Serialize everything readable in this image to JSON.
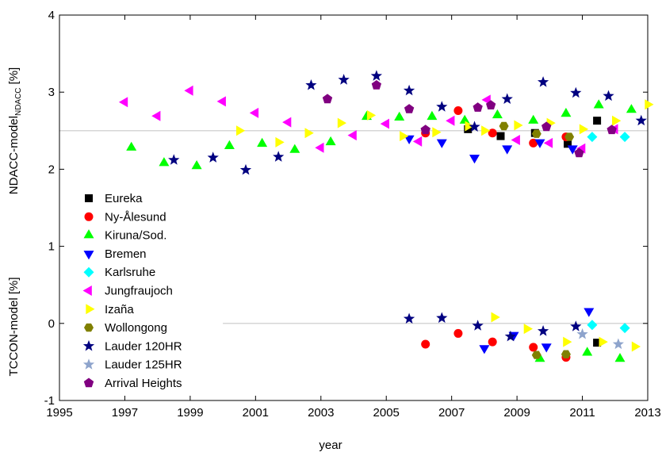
{
  "chart_data": {
    "type": "scatter",
    "ylabel_top": {
      "text": "NDACC-model",
      "sub": "NDACC",
      "unit": "[%]"
    },
    "ylabel_bottom": "TCCON-model [%]",
    "xlabel": "year",
    "xlim": [
      1995,
      2013
    ],
    "xticks": [
      1995,
      1997,
      1999,
      2001,
      2003,
      2005,
      2007,
      2009,
      2011,
      2013
    ],
    "ylim": [
      -1,
      4
    ],
    "yticks": [
      -1,
      0,
      1,
      2,
      3,
      4
    ],
    "legend": "lower left",
    "hlines": [
      {
        "y": 2.5,
        "xmin": 1995,
        "xmax": 2013,
        "color": "#c8c8c8"
      },
      {
        "y": 0,
        "xmin": 2000,
        "xmax": 2013,
        "color": "#c8c8c8"
      }
    ],
    "series": [
      {
        "name": "Eureka",
        "color": "#000000",
        "marker": "square",
        "x": [
          2007.5,
          2008.5,
          2009.55,
          2010.55,
          2011.45,
          2011.45
        ],
        "values": [
          2.52,
          2.43,
          2.47,
          2.33,
          2.63,
          -0.25
        ]
      },
      {
        "name": "Ny-Ålesund",
        "color": "#ff0000",
        "marker": "circle",
        "x": [
          2006.2,
          2007.2,
          2008.25,
          2009.5,
          2010.5,
          2006.2,
          2007.2,
          2008.25,
          2009.5,
          2010.5
        ],
        "values": [
          2.47,
          2.76,
          2.47,
          2.34,
          2.42,
          -0.27,
          -0.13,
          -0.24,
          -0.31,
          -0.44
        ]
      },
      {
        "name": "Kiruna/Sod.",
        "color": "#00ff00",
        "marker": "triangle-up",
        "x": [
          1997.2,
          1998.2,
          1999.2,
          2000.2,
          2001.2,
          2002.2,
          2003.3,
          2004.4,
          2005.4,
          2006.4,
          2007.4,
          2008.4,
          2009.5,
          2010.5,
          2011.5,
          2012.5,
          2009.7,
          2011.15,
          2012.15
        ],
        "values": [
          2.28,
          2.08,
          2.04,
          2.3,
          2.33,
          2.25,
          2.35,
          2.68,
          2.67,
          2.68,
          2.63,
          2.7,
          2.63,
          2.72,
          2.83,
          2.77,
          -0.46,
          -0.38,
          -0.46
        ]
      },
      {
        "name": "Bremen",
        "color": "#0000ff",
        "marker": "triangle-down",
        "x": [
          2005.7,
          2006.7,
          2007.7,
          2008.7,
          2009.7,
          2010.7,
          2008.0,
          2008.9,
          2009.9,
          2011.2
        ],
        "values": [
          2.4,
          2.35,
          2.15,
          2.27,
          2.35,
          2.27,
          -0.32,
          -0.15,
          -0.3,
          0.16
        ]
      },
      {
        "name": "Karlsruhe",
        "color": "#00ffff",
        "marker": "diamond",
        "x": [
          2011.3,
          2012.3,
          2011.3,
          2012.3
        ],
        "values": [
          2.42,
          2.42,
          -0.02,
          -0.06
        ]
      },
      {
        "name": "Jungfraujoch",
        "color": "#ff00ff",
        "marker": "triangle-left",
        "x": [
          1997.0,
          1998.0,
          1999.0,
          2000.0,
          2001.0,
          2002.0,
          2003.0,
          2004.0,
          2005.0,
          2006.0,
          2007.0,
          2008.1,
          2009.0,
          2010.0,
          2011.0,
          2012.0
        ],
        "values": [
          2.87,
          2.69,
          3.02,
          2.88,
          2.73,
          2.61,
          2.28,
          2.44,
          2.59,
          2.36,
          2.63,
          2.9,
          2.38,
          2.34,
          2.27,
          2.52
        ]
      },
      {
        "name": "Izaña",
        "color": "#ffff00",
        "marker": "triangle-right",
        "x": [
          2000.5,
          2001.7,
          2002.6,
          2003.6,
          2004.5,
          2005.5,
          2006.5,
          2007.5,
          2008.0,
          2009.0,
          2010.0,
          2011.0,
          2012.0,
          2013.0,
          2008.3,
          2009.3,
          2010.5,
          2011.6,
          2012.6
        ],
        "values": [
          2.5,
          2.35,
          2.47,
          2.6,
          2.7,
          2.43,
          2.48,
          2.56,
          2.5,
          2.57,
          2.6,
          2.52,
          2.63,
          2.84,
          0.08,
          -0.07,
          -0.24,
          -0.24,
          -0.3
        ]
      },
      {
        "name": "Wollongong",
        "color": "#808000",
        "marker": "hexagon",
        "x": [
          2008.6,
          2009.6,
          2010.6,
          2009.6,
          2010.5
        ],
        "values": [
          2.56,
          2.46,
          2.42,
          -0.41,
          -0.4
        ]
      },
      {
        "name": "Lauder 120HR",
        "color": "#000080",
        "marker": "star",
        "x": [
          1998.5,
          1999.7,
          2000.7,
          2001.7,
          2002.7,
          2003.7,
          2004.7,
          2005.7,
          2006.7,
          2007.7,
          2008.7,
          2009.8,
          2010.8,
          2011.8,
          2012.8,
          2005.7,
          2006.7,
          2007.8,
          2008.8,
          2009.8,
          2010.8
        ],
        "values": [
          2.12,
          2.15,
          1.99,
          2.16,
          3.09,
          3.16,
          3.21,
          3.02,
          2.81,
          2.55,
          2.91,
          3.13,
          2.99,
          2.95,
          2.63,
          0.06,
          0.07,
          -0.03,
          -0.17,
          -0.1,
          -0.04
        ]
      },
      {
        "name": "Lauder 125HR",
        "color": "#8ea4cc",
        "marker": "star",
        "x": [
          2011.0,
          2012.1
        ],
        "values": [
          -0.14,
          -0.27
        ]
      },
      {
        "name": "Arrival Heights",
        "color": "#800080",
        "marker": "pentagon",
        "x": [
          2003.2,
          2004.7,
          2005.7,
          2006.2,
          2007.8,
          2008.2,
          2009.9,
          2010.9,
          2011.9
        ],
        "values": [
          2.91,
          3.09,
          2.78,
          2.51,
          2.8,
          2.83,
          2.55,
          2.21,
          2.51
        ]
      }
    ]
  }
}
